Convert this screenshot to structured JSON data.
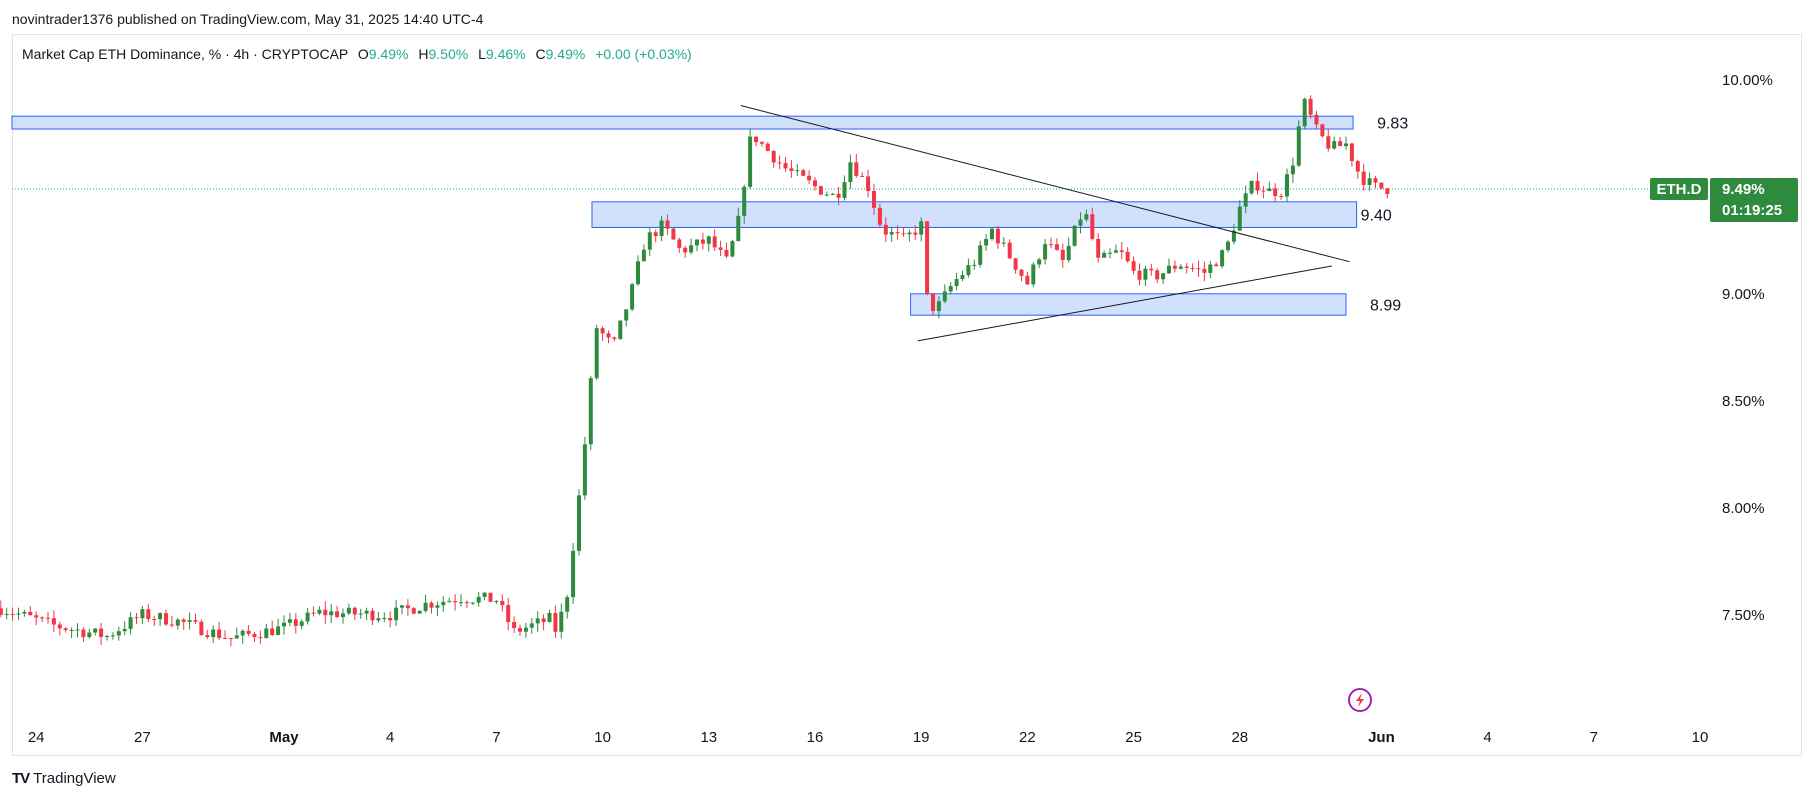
{
  "header": {
    "published": "novintrader1376 published on TradingView.com, May 31, 2025 14:40 UTC-4"
  },
  "legend": {
    "symbol_text": "Market Cap ETH Dominance, % · 4h · CRYPTOCAP",
    "o_key": "O",
    "o_val": "9.49%",
    "h_key": "H",
    "h_val": "9.50%",
    "l_key": "L",
    "l_val": "9.46%",
    "c_key": "C",
    "c_val": "9.49%",
    "change": "+0.00 (+0.03%)"
  },
  "brand": {
    "logo": "TV",
    "name": "TradingView"
  },
  "price_tag": {
    "symbol": "ETH.D",
    "price": "9.49%",
    "countdown": "01:19:25"
  },
  "colors": {
    "up": "#22ab94",
    "up_body": "#2e8b3e",
    "down": "#f23645",
    "zone_fill": "#c9dafc",
    "zone_stroke": "#2962ff",
    "tag_bg": "#2e8b3e"
  },
  "chart_data": {
    "type": "candlestick",
    "title": "Market Cap ETH Dominance, % · 4h · CRYPTOCAP",
    "ylim": [
      7.0,
      10.2
    ],
    "y_ticks": [
      "10.00%",
      "9.00%",
      "8.50%",
      "8.00%",
      "7.50%"
    ],
    "y_tick_values": [
      10.0,
      9.0,
      8.5,
      8.0,
      7.5
    ],
    "x_ticks": [
      "24",
      "27",
      "May",
      "4",
      "7",
      "10",
      "13",
      "16",
      "19",
      "22",
      "25",
      "28",
      "Jun",
      "4",
      "7",
      "10"
    ],
    "x_tick_days": [
      -7,
      -4,
      0,
      3,
      6,
      9,
      12,
      15,
      18,
      21,
      24,
      27,
      31,
      34,
      37,
      40
    ],
    "last_price": 9.49,
    "zones": [
      {
        "label": "9.83",
        "low": 9.77,
        "high": 9.83,
        "from_day": -8,
        "to_day": 30.2
      },
      {
        "label": "9.40",
        "low": 9.31,
        "high": 9.43,
        "from_day": 8.7,
        "to_day": 30.3
      },
      {
        "label": "8.99",
        "low": 8.9,
        "high": 9.0,
        "from_day": 17.7,
        "to_day": 30.0
      }
    ],
    "trendlines": [
      {
        "name": "upper",
        "points": [
          [
            12.9,
            9.88
          ],
          [
            30.1,
            9.15
          ]
        ]
      },
      {
        "name": "lower",
        "points": [
          [
            17.9,
            8.78
          ],
          [
            29.6,
            9.13
          ]
        ]
      }
    ],
    "anchors": [
      [
        -8,
        7.53
      ],
      [
        -6.5,
        7.45
      ],
      [
        -5,
        7.4
      ],
      [
        -4,
        7.5
      ],
      [
        -3,
        7.47
      ],
      [
        -1.5,
        7.39
      ],
      [
        0,
        7.44
      ],
      [
        1,
        7.51
      ],
      [
        3,
        7.5
      ],
      [
        4,
        7.55
      ],
      [
        5,
        7.58
      ],
      [
        6,
        7.57
      ],
      [
        6.5,
        7.42
      ],
      [
        7.5,
        7.48
      ],
      [
        7.7,
        7.42
      ],
      [
        8,
        7.6
      ],
      [
        8.3,
        8.0
      ],
      [
        8.6,
        8.45
      ],
      [
        8.8,
        8.85
      ],
      [
        9.3,
        8.75
      ],
      [
        9.8,
        9.0
      ],
      [
        10.2,
        9.25
      ],
      [
        10.7,
        9.32
      ],
      [
        11.2,
        9.2
      ],
      [
        12,
        9.25
      ],
      [
        12.5,
        9.15
      ],
      [
        12.8,
        9.3
      ],
      [
        13.2,
        9.75
      ],
      [
        13.6,
        9.68
      ],
      [
        14.2,
        9.58
      ],
      [
        15.0,
        9.5
      ],
      [
        15.6,
        9.45
      ],
      [
        16.0,
        9.62
      ],
      [
        16.5,
        9.5
      ],
      [
        16.9,
        9.3
      ],
      [
        17.5,
        9.25
      ],
      [
        18.0,
        9.32
      ],
      [
        18.1,
        9.0
      ],
      [
        18.4,
        8.92
      ],
      [
        18.9,
        9.05
      ],
      [
        19.5,
        9.15
      ],
      [
        20.0,
        9.3
      ],
      [
        20.6,
        9.15
      ],
      [
        21.0,
        9.05
      ],
      [
        21.5,
        9.25
      ],
      [
        22.0,
        9.15
      ],
      [
        22.6,
        9.4
      ],
      [
        23.0,
        9.15
      ],
      [
        23.6,
        9.2
      ],
      [
        24.0,
        9.1
      ],
      [
        24.6,
        9.08
      ],
      [
        25.3,
        9.14
      ],
      [
        26.0,
        9.1
      ],
      [
        26.6,
        9.2
      ],
      [
        27.0,
        9.4
      ],
      [
        27.4,
        9.52
      ],
      [
        27.8,
        9.48
      ],
      [
        28.2,
        9.48
      ],
      [
        28.5,
        9.62
      ],
      [
        28.8,
        9.9
      ],
      [
        29.2,
        9.75
      ],
      [
        29.6,
        9.68
      ],
      [
        30.0,
        9.7
      ],
      [
        30.4,
        9.55
      ],
      [
        30.8,
        9.5
      ],
      [
        31.2,
        9.49
      ]
    ]
  }
}
